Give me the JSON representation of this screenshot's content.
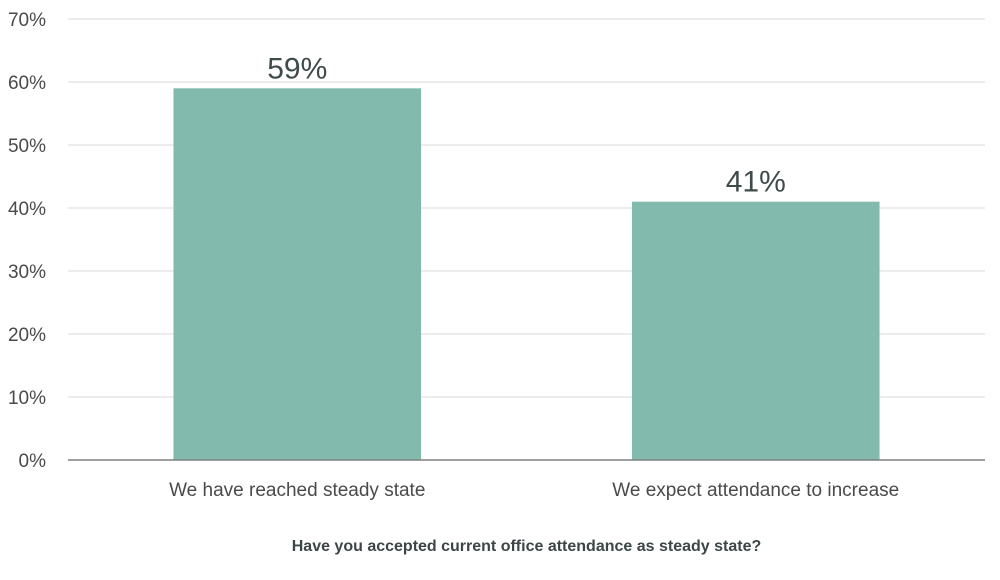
{
  "chart_data": {
    "type": "bar",
    "categories": [
      "We have reached steady state",
      "We expect attendance to increase"
    ],
    "values": [
      59,
      41
    ],
    "data_labels": [
      "59%",
      "41%"
    ],
    "xlabel": "Have you accepted current office attendance as steady state?",
    "ylabel": "",
    "ylim": [
      0,
      70
    ],
    "yticks": [
      0,
      10,
      20,
      30,
      40,
      50,
      60,
      70
    ],
    "ytick_labels": [
      "0%",
      "10%",
      "20%",
      "30%",
      "40%",
      "50%",
      "60%",
      "70%"
    ],
    "grid": true,
    "legend": "none",
    "bar_color": "#82bbad"
  }
}
